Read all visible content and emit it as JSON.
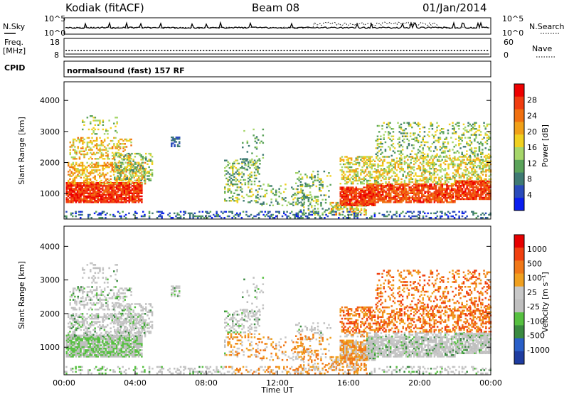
{
  "header": {
    "station": "Kodiak (fitACF)",
    "beam": "Beam 08",
    "date": "01/Jan/2014"
  },
  "noise_panel": {
    "left_label": "N.Sky",
    "right_label": "N.Search",
    "left_ticks": [
      "10^5",
      "10^0"
    ],
    "right_ticks": [
      "10^5",
      "10^0"
    ]
  },
  "freq_panel": {
    "left_label_top": "Freq.",
    "left_label_unit": "[MHz]",
    "right_label": "Nave",
    "left_ticks": [
      "18",
      "8"
    ],
    "right_ticks": [
      "60",
      "0"
    ]
  },
  "cpid": {
    "label": "CPID",
    "value": "normalsound (fast) 157 RF"
  },
  "chart_data": [
    {
      "type": "heatmap",
      "name": "power",
      "ylabel": "Slant Range [km]",
      "ylim": [
        180,
        4600
      ],
      "yticks": [
        1000,
        2000,
        3000,
        4000
      ],
      "colorbar_label": "Power [dB]",
      "colorbar_ticks": [
        "28",
        "24",
        "20",
        "16",
        "12",
        "8",
        "4"
      ],
      "colors": [
        "#0a1ef0",
        "#2a4bbb",
        "#3f7a73",
        "#5ba35a",
        "#a6d66a",
        "#f0d020",
        "#f0a018",
        "#f07010",
        "#f03c10",
        "#ee0000"
      ]
    },
    {
      "type": "heatmap",
      "name": "velocity",
      "ylabel": "Slant Range [km]",
      "ylim": [
        180,
        4600
      ],
      "yticks": [
        1000,
        2000,
        3000,
        4000
      ],
      "xlabel": "Time UT",
      "xticks": [
        "00:00",
        "04:00",
        "08:00",
        "12:00",
        "16:00",
        "20:00",
        "00:00"
      ],
      "colorbar_label": "Velocity [m s⁻¹]",
      "colorbar_ticks": [
        "1000",
        "500",
        "100",
        "25",
        "-25",
        "-100",
        "-500",
        "-1000"
      ],
      "colors": [
        "#1e3ca0",
        "#2a5fc8",
        "#3a8a40",
        "#56c040",
        "#bfbfbf",
        "#c8c8c8",
        "#f0a020",
        "#f07818",
        "#f04010",
        "#e60000"
      ]
    }
  ]
}
